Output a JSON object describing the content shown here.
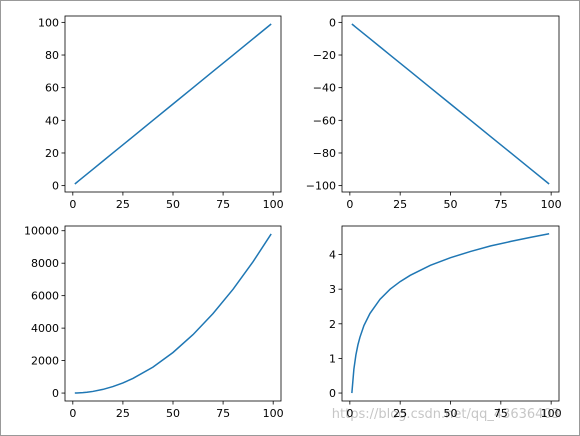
{
  "chart_data": [
    {
      "type": "line",
      "color": "#1f77b4",
      "x": [
        1,
        2,
        3,
        4,
        5,
        7,
        10,
        15,
        20,
        25,
        30,
        40,
        50,
        60,
        70,
        80,
        90,
        99
      ],
      "values": [
        1,
        2,
        3,
        4,
        5,
        7,
        10,
        15,
        20,
        25,
        30,
        40,
        50,
        60,
        70,
        80,
        90,
        99
      ],
      "xlim": [
        -3.9,
        103.9
      ],
      "ylim": [
        -3.9,
        103.9
      ],
      "xticks": [
        0,
        25,
        50,
        75,
        100
      ],
      "yticks": [
        0,
        20,
        40,
        60,
        80,
        100
      ]
    },
    {
      "type": "line",
      "color": "#1f77b4",
      "x": [
        1,
        2,
        3,
        4,
        5,
        7,
        10,
        15,
        20,
        25,
        30,
        40,
        50,
        60,
        70,
        80,
        90,
        99
      ],
      "values": [
        -1,
        -2,
        -3,
        -4,
        -5,
        -7,
        -10,
        -15,
        -20,
        -25,
        -30,
        -40,
        -50,
        -60,
        -70,
        -80,
        -90,
        -99
      ],
      "xlim": [
        -3.9,
        103.9
      ],
      "ylim": [
        -103.9,
        3.9
      ],
      "xticks": [
        0,
        25,
        50,
        75,
        100
      ],
      "yticks": [
        0,
        {
          "value": -20,
          "label": "−20"
        },
        {
          "value": -40,
          "label": "−40"
        },
        {
          "value": -60,
          "label": "−60"
        },
        {
          "value": -80,
          "label": "−80"
        },
        {
          "value": -100,
          "label": "−100"
        }
      ]
    },
    {
      "type": "line",
      "color": "#1f77b4",
      "x": [
        1,
        2,
        3,
        4,
        5,
        7,
        10,
        15,
        20,
        25,
        30,
        40,
        50,
        60,
        70,
        80,
        90,
        99
      ],
      "values": [
        1,
        4,
        9,
        16,
        25,
        49,
        100,
        225,
        400,
        625,
        900,
        1600,
        2500,
        3600,
        4900,
        6400,
        8100,
        9801
      ],
      "xlim": [
        -3.9,
        103.9
      ],
      "ylim": [
        -489,
        10291
      ],
      "xticks": [
        0,
        25,
        50,
        75,
        100
      ],
      "yticks": [
        0,
        2000,
        4000,
        6000,
        8000,
        10000
      ]
    },
    {
      "type": "line",
      "color": "#1f77b4",
      "x": [
        1,
        2,
        3,
        4,
        5,
        7,
        10,
        15,
        20,
        25,
        30,
        40,
        50,
        60,
        70,
        80,
        90,
        99
      ],
      "values": [
        0,
        0.69,
        1.1,
        1.39,
        1.61,
        1.95,
        2.3,
        2.71,
        3,
        3.22,
        3.4,
        3.69,
        3.91,
        4.09,
        4.25,
        4.38,
        4.5,
        4.6
      ],
      "xlim": [
        -3.9,
        103.9
      ],
      "ylim": [
        -0.23,
        4.825
      ],
      "xticks": [
        0,
        25,
        50,
        75,
        100
      ],
      "yticks": [
        0,
        1,
        2,
        3,
        4
      ]
    }
  ],
  "watermark": "https://blog.csdn.net/qq_43636403"
}
